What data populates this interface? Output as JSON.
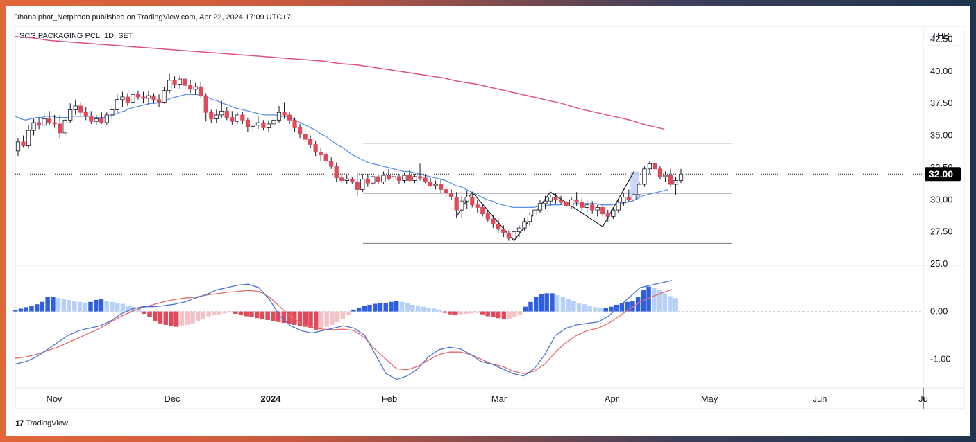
{
  "header": {
    "published_line": "Dhanaiphat_Netpitoon published on TradingView.com, Apr 22, 2024 17:09 UTC+7",
    "symbol_line": "SCG PACKAGING PCL, 1D, SET",
    "currency": "THB",
    "last_price": "32.00"
  },
  "footer": {
    "brand": "TradingView",
    "logo": "17"
  },
  "colors": {
    "up": "#ffffff",
    "down": "#e0495a",
    "wick": "#131722",
    "ma_short": "#5b8ef2",
    "ma_long": "#e05378",
    "macd": "#4a72d6",
    "signal": "#e66a6a",
    "hist_pos_strong": "#2f5fe0",
    "hist_pos_weak": "#b7d0f6",
    "hist_neg_strong": "#e0495a",
    "hist_neg_weak": "#f4c1c6",
    "price_label_bg": "#000000",
    "highlight": "#b9cdf2"
  },
  "chart_data": [
    {
      "type": "candlestick",
      "title": "SCG PACKAGING PCL, 1D, SET",
      "ylim": [
        25.0,
        43.5
      ],
      "y_ticks": [
        "42.50",
        "40.00",
        "37.50",
        "35.00",
        "32.50",
        "30.00",
        "27.50",
        "25.0"
      ],
      "x_ticks": [
        "Nov",
        "Dec",
        "2024",
        "Feb",
        "Mar",
        "Apr",
        "May",
        "Jun",
        "Ju"
      ],
      "last_price": 32.0,
      "horizontal_levels": [
        34.4,
        30.5,
        26.6
      ],
      "candles": [
        [
          33.8,
          34.8,
          33.4,
          34.5
        ],
        [
          34.5,
          35.0,
          34.1,
          34.2
        ],
        [
          34.2,
          35.8,
          34.0,
          35.4
        ],
        [
          35.4,
          36.3,
          35.0,
          36.0
        ],
        [
          36.0,
          36.4,
          35.5,
          35.8
        ],
        [
          35.8,
          36.8,
          35.6,
          36.3
        ],
        [
          36.3,
          36.9,
          35.8,
          36.0
        ],
        [
          36.0,
          36.6,
          35.6,
          35.9
        ],
        [
          35.9,
          36.6,
          34.8,
          35.2
        ],
        [
          35.2,
          36.4,
          35.0,
          36.2
        ],
        [
          36.2,
          37.5,
          36.0,
          37.0
        ],
        [
          37.0,
          37.8,
          36.6,
          37.3
        ],
        [
          37.3,
          37.6,
          36.5,
          36.8
        ],
        [
          36.8,
          37.2,
          36.2,
          36.5
        ],
        [
          36.5,
          36.9,
          35.9,
          36.1
        ],
        [
          36.1,
          36.6,
          35.8,
          36.3
        ],
        [
          36.3,
          36.8,
          35.9,
          36.0
        ],
        [
          36.0,
          36.8,
          35.8,
          36.6
        ],
        [
          36.6,
          37.4,
          36.2,
          37.0
        ],
        [
          37.0,
          38.2,
          36.8,
          37.8
        ],
        [
          37.8,
          38.4,
          37.2,
          38.0
        ],
        [
          38.0,
          38.3,
          37.3,
          37.6
        ],
        [
          37.6,
          38.4,
          37.4,
          38.2
        ],
        [
          38.2,
          38.5,
          37.8,
          38.0
        ],
        [
          38.0,
          38.4,
          37.5,
          37.9
        ],
        [
          37.9,
          38.5,
          37.4,
          38.1
        ],
        [
          38.1,
          38.3,
          37.5,
          37.8
        ],
        [
          37.8,
          38.2,
          37.2,
          37.6
        ],
        [
          37.6,
          38.8,
          37.5,
          38.5
        ],
        [
          38.5,
          39.8,
          38.3,
          39.3
        ],
        [
          39.3,
          39.6,
          38.7,
          39.0
        ],
        [
          39.0,
          39.7,
          38.6,
          39.4
        ],
        [
          39.4,
          39.5,
          38.6,
          38.9
        ],
        [
          38.9,
          39.3,
          38.3,
          38.6
        ],
        [
          38.6,
          39.1,
          38.2,
          38.8
        ],
        [
          38.8,
          39.2,
          37.9,
          38.1
        ],
        [
          38.1,
          38.3,
          36.1,
          36.8
        ],
        [
          36.8,
          37.0,
          36.0,
          36.3
        ],
        [
          36.3,
          37.0,
          36.0,
          36.6
        ],
        [
          36.6,
          37.7,
          36.4,
          36.9
        ],
        [
          36.9,
          37.2,
          36.2,
          36.4
        ],
        [
          36.4,
          36.9,
          35.8,
          36.1
        ],
        [
          36.1,
          36.8,
          35.9,
          36.6
        ],
        [
          36.6,
          36.8,
          35.9,
          36.2
        ],
        [
          36.2,
          36.4,
          35.3,
          35.7
        ],
        [
          35.7,
          36.0,
          35.2,
          35.8
        ],
        [
          35.8,
          36.5,
          35.5,
          36.0
        ],
        [
          36.0,
          36.2,
          35.4,
          35.6
        ],
        [
          35.6,
          36.2,
          35.3,
          35.9
        ],
        [
          35.9,
          36.4,
          35.5,
          36.2
        ],
        [
          36.2,
          37.3,
          36.0,
          36.8
        ],
        [
          36.8,
          37.6,
          36.3,
          36.6
        ],
        [
          36.6,
          36.8,
          35.9,
          36.2
        ],
        [
          36.2,
          36.4,
          35.3,
          35.6
        ],
        [
          35.6,
          35.9,
          34.8,
          35.1
        ],
        [
          35.1,
          35.5,
          34.5,
          34.7
        ],
        [
          34.7,
          35.0,
          34.0,
          34.3
        ],
        [
          34.3,
          34.6,
          33.4,
          33.7
        ],
        [
          33.7,
          34.0,
          33.0,
          33.5
        ],
        [
          33.5,
          33.7,
          32.8,
          33.0
        ],
        [
          33.0,
          33.3,
          32.4,
          32.6
        ],
        [
          32.6,
          32.9,
          31.4,
          31.7
        ],
        [
          31.7,
          32.0,
          31.3,
          31.5
        ],
        [
          31.5,
          31.9,
          31.2,
          31.6
        ],
        [
          31.6,
          31.8,
          31.2,
          31.4
        ],
        [
          31.4,
          32.1,
          30.3,
          30.8
        ],
        [
          30.8,
          32.0,
          30.6,
          31.6
        ],
        [
          31.6,
          32.0,
          31.0,
          31.3
        ],
        [
          31.3,
          31.9,
          31.1,
          31.8
        ],
        [
          31.8,
          32.0,
          31.2,
          31.4
        ],
        [
          31.4,
          32.2,
          31.2,
          31.9
        ],
        [
          31.9,
          32.4,
          31.5,
          31.6
        ],
        [
          31.6,
          32.0,
          31.3,
          31.8
        ],
        [
          31.8,
          32.0,
          31.2,
          31.5
        ],
        [
          31.5,
          32.1,
          31.3,
          31.9
        ],
        [
          31.9,
          32.3,
          31.4,
          31.5
        ],
        [
          31.5,
          32.0,
          31.3,
          31.8
        ],
        [
          31.8,
          32.8,
          31.5,
          31.7
        ],
        [
          31.7,
          32.0,
          31.3,
          31.4
        ],
        [
          31.4,
          31.7,
          31.0,
          31.1
        ],
        [
          31.1,
          31.5,
          30.8,
          31.2
        ],
        [
          31.2,
          31.6,
          30.5,
          30.8
        ],
        [
          30.8,
          31.1,
          30.2,
          30.5
        ],
        [
          30.5,
          30.8,
          30.0,
          30.2
        ],
        [
          30.2,
          30.6,
          28.6,
          29.2
        ],
        [
          29.2,
          30.3,
          28.6,
          29.9
        ],
        [
          29.9,
          30.7,
          29.3,
          30.2
        ],
        [
          30.2,
          30.6,
          29.4,
          29.6
        ],
        [
          29.6,
          30.0,
          29.0,
          29.4
        ],
        [
          29.4,
          29.7,
          28.7,
          28.9
        ],
        [
          28.9,
          29.2,
          28.3,
          28.5
        ],
        [
          28.5,
          28.8,
          27.8,
          28.1
        ],
        [
          28.1,
          28.5,
          27.4,
          27.7
        ],
        [
          27.7,
          28.0,
          27.1,
          27.4
        ],
        [
          27.4,
          27.6,
          26.8,
          27.0
        ],
        [
          27.0,
          27.8,
          26.9,
          27.5
        ],
        [
          27.5,
          28.0,
          27.1,
          27.8
        ],
        [
          27.8,
          28.6,
          27.6,
          28.3
        ],
        [
          28.3,
          29.0,
          28.0,
          28.8
        ],
        [
          28.8,
          29.5,
          28.5,
          29.2
        ],
        [
          29.2,
          30.0,
          29.0,
          29.7
        ],
        [
          29.7,
          30.3,
          29.3,
          29.9
        ],
        [
          29.9,
          30.4,
          29.5,
          30.2
        ],
        [
          30.2,
          30.5,
          29.7,
          30.0
        ],
        [
          30.0,
          30.3,
          29.6,
          29.8
        ],
        [
          29.8,
          30.1,
          29.4,
          29.5
        ],
        [
          29.5,
          30.2,
          29.3,
          30.0
        ],
        [
          30.0,
          30.6,
          29.5,
          29.8
        ],
        [
          29.8,
          30.1,
          29.2,
          29.4
        ],
        [
          29.4,
          29.9,
          29.0,
          29.6
        ],
        [
          29.6,
          29.9,
          28.9,
          29.2
        ],
        [
          29.2,
          29.6,
          28.7,
          29.4
        ],
        [
          29.4,
          29.6,
          28.7,
          28.9
        ],
        [
          28.9,
          29.2,
          28.3,
          28.7
        ],
        [
          28.7,
          29.4,
          28.5,
          29.2
        ],
        [
          29.2,
          30.0,
          29.0,
          29.8
        ],
        [
          29.8,
          30.5,
          29.5,
          30.2
        ],
        [
          30.2,
          30.8,
          29.8,
          30.0
        ],
        [
          30.0,
          30.5,
          29.7,
          30.4
        ],
        [
          30.4,
          31.4,
          30.2,
          31.2
        ],
        [
          31.2,
          32.6,
          31.0,
          32.4
        ],
        [
          32.4,
          33.0,
          32.0,
          32.8
        ],
        [
          32.8,
          33.0,
          32.2,
          32.4
        ],
        [
          32.4,
          32.6,
          31.6,
          31.8
        ],
        [
          31.8,
          32.2,
          31.4,
          31.9
        ],
        [
          31.9,
          32.4,
          31.0,
          31.2
        ],
        [
          31.2,
          31.8,
          30.4,
          31.5
        ],
        [
          31.5,
          32.4,
          31.3,
          32.0
        ]
      ],
      "ma_short": [
        36.5,
        36.3,
        36.2,
        36.3,
        36.4,
        36.4,
        36.5,
        36.5,
        36.4,
        36.4,
        36.4,
        36.5,
        36.5,
        36.5,
        36.5,
        36.4,
        36.4,
        36.4,
        36.5,
        36.6,
        36.8,
        36.9,
        37.1,
        37.2,
        37.3,
        37.4,
        37.5,
        37.5,
        37.6,
        37.7,
        37.9,
        38.0,
        38.1,
        38.2,
        38.2,
        38.2,
        38.1,
        38.0,
        37.8,
        37.7,
        37.5,
        37.4,
        37.2,
        37.1,
        37.0,
        36.9,
        36.8,
        36.7,
        36.6,
        36.6,
        36.6,
        36.5,
        36.5,
        36.4,
        36.2,
        36.0,
        35.8,
        35.6,
        35.4,
        35.1,
        34.9,
        34.6,
        34.3,
        34.1,
        33.8,
        33.5,
        33.3,
        33.1,
        32.9,
        32.8,
        32.7,
        32.6,
        32.5,
        32.4,
        32.3,
        32.2,
        32.2,
        32.1,
        32.0,
        31.9,
        31.8,
        31.7,
        31.6,
        31.5,
        31.3,
        31.1,
        31.0,
        30.8,
        30.6,
        30.4,
        30.2,
        30.0,
        29.9,
        29.7,
        29.6,
        29.5,
        29.4,
        29.4,
        29.4,
        29.4,
        29.4,
        29.5,
        29.5,
        29.6,
        29.6,
        29.6,
        29.7,
        29.7,
        29.7,
        29.7,
        29.7,
        29.7,
        29.7,
        29.6,
        29.6,
        29.6,
        29.7,
        29.7,
        29.8,
        29.9,
        30.1,
        30.3,
        30.4,
        30.5,
        30.6,
        30.7,
        30.8
      ],
      "ma_long": [
        42.7,
        42.6,
        42.4,
        42.3,
        42.2,
        42.1,
        42.0,
        41.9,
        41.8,
        41.7,
        41.6,
        41.5,
        41.4,
        41.3,
        41.2,
        41.1,
        41.0,
        40.9,
        40.8,
        40.6,
        40.5,
        40.3,
        40.1,
        39.9,
        39.7,
        39.5,
        39.2,
        39.0,
        38.7,
        38.4,
        38.1,
        37.8,
        37.5,
        37.1,
        36.8,
        36.5,
        36.2,
        35.8,
        35.5
      ],
      "ma_long_start_index": 0,
      "ma_long_step": 3.3
    },
    {
      "type": "macd",
      "ylim": [
        -1.6,
        0.95
      ],
      "y_ticks": [
        "0.00",
        "-1.00"
      ],
      "macd": [
        -1.1,
        -1.05,
        -0.95,
        -0.8,
        -0.65,
        -0.5,
        -0.4,
        -0.35,
        -0.3,
        -0.2,
        -0.05,
        0.05,
        0.1,
        0.1,
        0.12,
        0.15,
        0.2,
        0.28,
        0.35,
        0.45,
        0.5,
        0.55,
        0.57,
        0.5,
        0.25,
        -0.1,
        -0.3,
        -0.4,
        -0.45,
        -0.4,
        -0.35,
        -0.3,
        -0.35,
        -0.5,
        -0.9,
        -1.3,
        -1.42,
        -1.35,
        -1.2,
        -0.95,
        -0.8,
        -0.75,
        -0.78,
        -0.9,
        -1.05,
        -1.1,
        -1.2,
        -1.3,
        -1.35,
        -1.2,
        -0.9,
        -0.5,
        -0.35,
        -0.28,
        -0.25,
        -0.22,
        -0.1,
        0.1,
        0.3,
        0.5,
        0.55,
        0.6,
        0.65
      ],
      "signal": [
        -0.98,
        -0.95,
        -0.9,
        -0.82,
        -0.75,
        -0.65,
        -0.55,
        -0.45,
        -0.35,
        -0.22,
        -0.1,
        0.0,
        0.08,
        0.14,
        0.2,
        0.25,
        0.28,
        0.3,
        0.34,
        0.37,
        0.4,
        0.42,
        0.44,
        0.42,
        0.3,
        0.1,
        -0.1,
        -0.25,
        -0.33,
        -0.37,
        -0.38,
        -0.37,
        -0.4,
        -0.55,
        -0.8,
        -1.0,
        -1.2,
        -1.22,
        -1.15,
        -1.02,
        -0.9,
        -0.85,
        -0.85,
        -0.9,
        -1.0,
        -1.1,
        -1.15,
        -1.25,
        -1.3,
        -1.25,
        -1.1,
        -0.85,
        -0.65,
        -0.5,
        -0.4,
        -0.35,
        -0.25,
        -0.1,
        0.05,
        0.2,
        0.3,
        0.38,
        0.46
      ],
      "histogram": [
        0.03,
        0.06,
        0.09,
        0.12,
        0.15,
        0.2,
        0.3,
        0.3,
        0.28,
        0.26,
        0.24,
        0.22,
        0.2,
        0.18,
        0.2,
        0.24,
        0.26,
        0.22,
        0.2,
        0.18,
        0.16,
        0.12,
        0.1,
        0.08,
        -0.05,
        -0.12,
        -0.2,
        -0.25,
        -0.28,
        -0.3,
        -0.32,
        -0.3,
        -0.28,
        -0.25,
        -0.2,
        -0.15,
        -0.1,
        -0.08,
        -0.06,
        -0.04,
        -0.02,
        -0.05,
        -0.08,
        -0.1,
        -0.12,
        -0.14,
        -0.16,
        -0.18,
        -0.2,
        -0.22,
        -0.24,
        -0.26,
        -0.28,
        -0.3,
        -0.32,
        -0.35,
        -0.38,
        -0.36,
        -0.32,
        -0.28,
        -0.22,
        -0.15,
        -0.08,
        0.04,
        0.08,
        0.12,
        0.14,
        0.16,
        0.17,
        0.18,
        0.2,
        0.22,
        0.2,
        0.17,
        0.14,
        0.12,
        0.1,
        0.08,
        0.06,
        0.04,
        -0.03,
        -0.06,
        -0.08,
        -0.06,
        -0.05,
        -0.04,
        -0.03,
        -0.06,
        -0.1,
        -0.12,
        -0.14,
        -0.16,
        -0.15,
        -0.12,
        -0.08,
        0.1,
        0.2,
        0.3,
        0.36,
        0.38,
        0.38,
        0.34,
        0.3,
        0.26,
        0.22,
        0.18,
        0.15,
        0.12,
        0.09,
        0.07,
        0.08,
        0.1,
        0.14,
        0.18,
        0.2,
        0.22,
        0.3,
        0.45,
        0.52,
        0.5,
        0.45,
        0.38,
        0.32,
        0.28
      ]
    }
  ]
}
